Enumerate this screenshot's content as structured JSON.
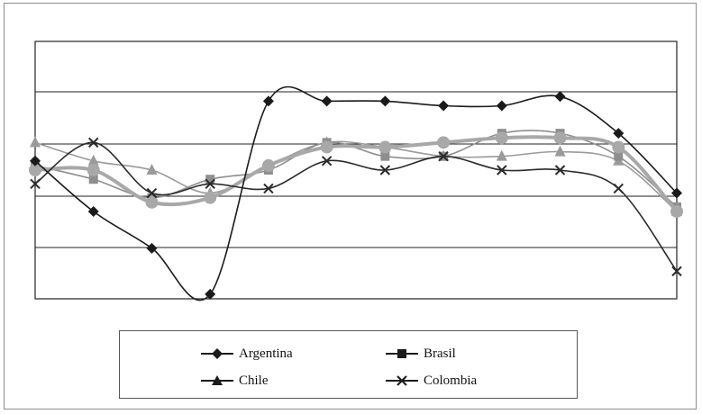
{
  "chart_data": {
    "type": "line",
    "x": [
      1,
      2,
      3,
      4,
      5,
      6,
      7,
      8,
      9,
      10,
      11,
      12
    ],
    "ylim": [
      0,
      5.6
    ],
    "grid": true,
    "legend_position": "bottom",
    "series": [
      {
        "name": "Argentina",
        "marker": "diamond",
        "color": "#1a1a1a",
        "values": [
          3.0,
          1.9,
          1.1,
          0.1,
          4.3,
          4.3,
          4.3,
          4.2,
          4.2,
          4.4,
          3.6,
          2.3
        ]
      },
      {
        "name": "Brasil",
        "marker": "square",
        "color": "#8e8e8e",
        "values": [
          2.9,
          2.6,
          2.2,
          2.6,
          2.8,
          3.4,
          3.1,
          3.1,
          3.6,
          3.6,
          3.1,
          2.0
        ]
      },
      {
        "name": "Chile",
        "marker": "triangle",
        "color": "#9a9a9a",
        "values": [
          3.4,
          3.0,
          2.8,
          2.3,
          2.9,
          3.4,
          3.3,
          3.1,
          3.1,
          3.2,
          3.0,
          1.9
        ]
      },
      {
        "name": "Colombia",
        "marker": "x",
        "color": "#2a2a2a",
        "values": [
          2.5,
          3.4,
          2.3,
          2.5,
          2.4,
          3.0,
          2.8,
          3.1,
          2.8,
          2.8,
          2.4,
          0.6
        ]
      },
      {
        "name": "",
        "marker": "circle",
        "color": "#a8a8a8",
        "values": [
          2.8,
          2.8,
          2.1,
          2.2,
          2.9,
          3.3,
          3.3,
          3.4,
          3.5,
          3.5,
          3.3,
          1.9
        ]
      }
    ]
  }
}
